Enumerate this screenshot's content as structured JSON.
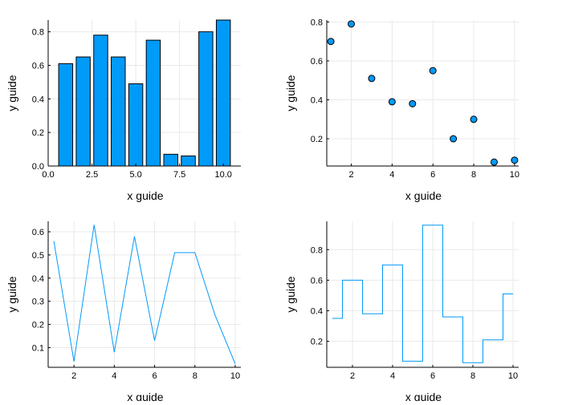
{
  "colors": {
    "series": "#009AF9",
    "axis": "#000000",
    "grid": "#e9e9e9",
    "marker_edge": "#000000"
  },
  "chart_data": [
    {
      "type": "bar",
      "xlabel": "x guide",
      "ylabel": "y guide",
      "x": [
        1,
        2,
        3,
        4,
        5,
        6,
        7,
        8,
        9,
        10
      ],
      "values": [
        0.61,
        0.65,
        0.78,
        0.65,
        0.49,
        0.75,
        0.07,
        0.06,
        0.8,
        0.87
      ],
      "xlim": [
        0,
        11
      ],
      "ylim": [
        0,
        0.87
      ],
      "xticks": [
        0,
        2.5,
        5,
        7.5,
        10
      ],
      "xticklabels": [
        "0.0",
        "2.5",
        "5.0",
        "7.5",
        "10.0"
      ],
      "yticks": [
        0,
        0.2,
        0.4,
        0.6,
        0.8
      ],
      "yticklabels": [
        "0.0",
        "0.2",
        "0.4",
        "0.6",
        "0.8"
      ],
      "grid": true,
      "legend": false
    },
    {
      "type": "scatter",
      "xlabel": "x guide",
      "ylabel": "y guide",
      "x": [
        1,
        2,
        3,
        4,
        5,
        6,
        7,
        8,
        9,
        10
      ],
      "values": [
        0.7,
        0.79,
        0.51,
        0.39,
        0.38,
        0.55,
        0.2,
        0.3,
        0.08,
        0.09
      ],
      "xlim": [
        0.8,
        10.2
      ],
      "ylim": [
        0.06,
        0.81
      ],
      "xticks": [
        2,
        4,
        6,
        8,
        10
      ],
      "xticklabels": [
        "2",
        "4",
        "6",
        "8",
        "10"
      ],
      "yticks": [
        0.2,
        0.4,
        0.6,
        0.8
      ],
      "yticklabels": [
        "0.2",
        "0.4",
        "0.6",
        "0.8"
      ],
      "grid": true,
      "legend": false
    },
    {
      "type": "line",
      "xlabel": "x guide",
      "ylabel": "y guide",
      "x": [
        1,
        2,
        3,
        4,
        5,
        6,
        7,
        8,
        9,
        10
      ],
      "values": [
        0.56,
        0.04,
        0.63,
        0.08,
        0.58,
        0.13,
        0.51,
        0.51,
        0.24,
        0.03
      ],
      "xlim": [
        0.72,
        10.28
      ],
      "ylim": [
        0.015,
        0.645
      ],
      "xticks": [
        2,
        4,
        6,
        8,
        10
      ],
      "xticklabels": [
        "2",
        "4",
        "6",
        "8",
        "10"
      ],
      "yticks": [
        0.1,
        0.2,
        0.3,
        0.4,
        0.5,
        0.6
      ],
      "yticklabels": [
        "0.1",
        "0.2",
        "0.3",
        "0.4",
        "0.5",
        "0.6"
      ],
      "grid": true,
      "legend": false
    },
    {
      "type": "line",
      "step": "mid",
      "xlabel": "x guide",
      "ylabel": "y guide",
      "x": [
        1,
        2,
        3,
        4,
        5,
        6,
        7,
        8,
        9,
        10
      ],
      "values": [
        0.35,
        0.6,
        0.38,
        0.7,
        0.07,
        0.96,
        0.36,
        0.06,
        0.21,
        0.51
      ],
      "xlim": [
        0.72,
        10.28
      ],
      "ylim": [
        0.03,
        0.985
      ],
      "xticks": [
        2,
        4,
        6,
        8,
        10
      ],
      "xticklabels": [
        "2",
        "4",
        "6",
        "8",
        "10"
      ],
      "yticks": [
        0.2,
        0.4,
        0.6,
        0.8
      ],
      "yticklabels": [
        "0.2",
        "0.4",
        "0.6",
        "0.8"
      ],
      "grid": true,
      "legend": false
    }
  ]
}
